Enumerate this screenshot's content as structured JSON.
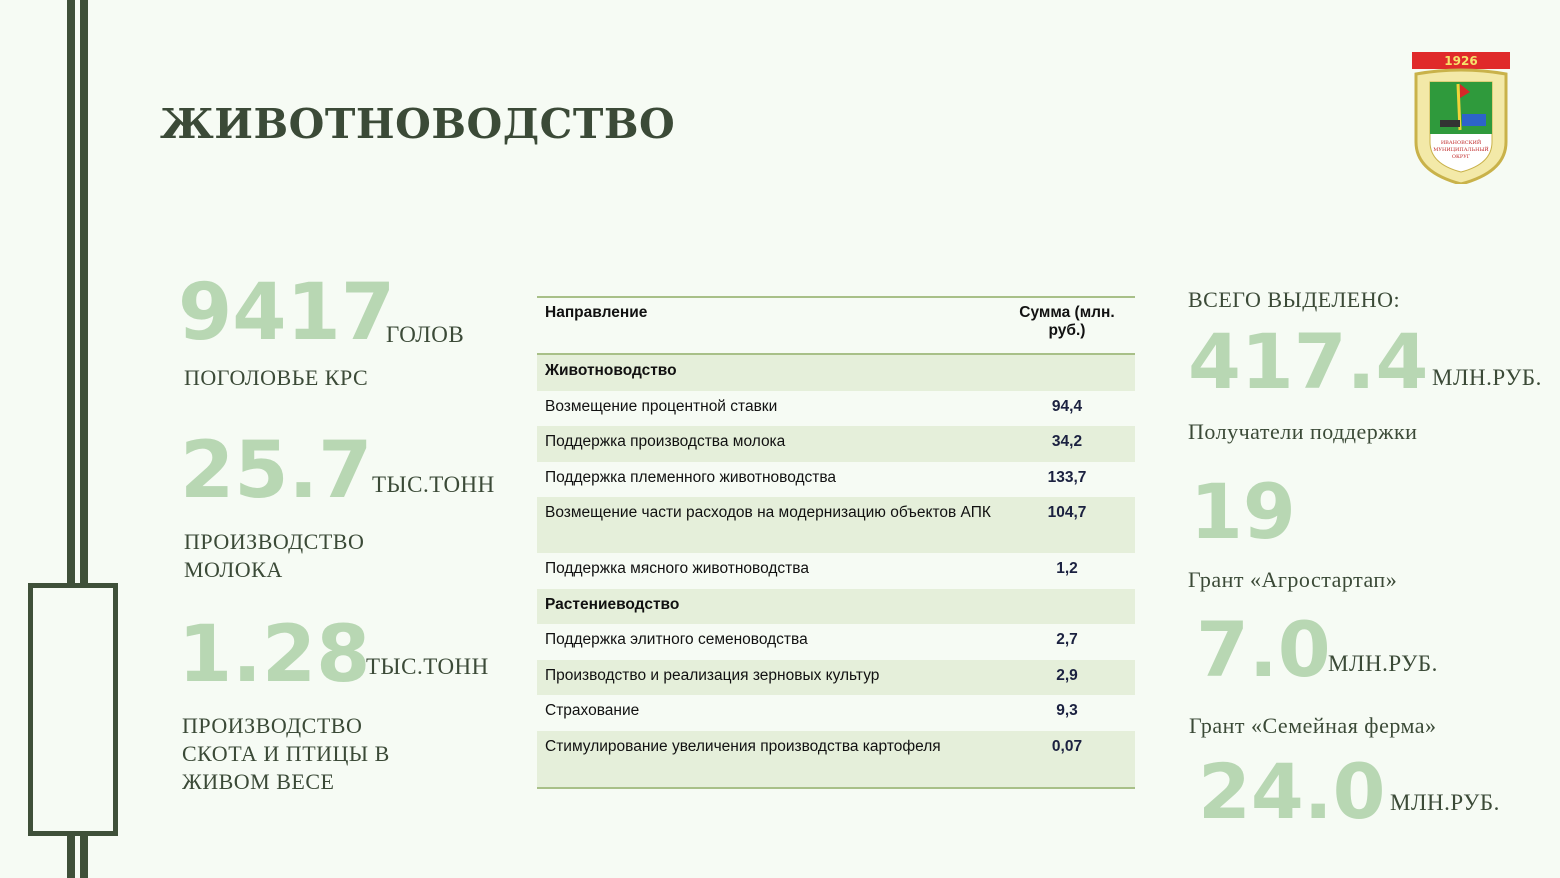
{
  "title": "ЖИВОТНОВОДСТВО",
  "logo": {
    "year": "1926",
    "text": "ИВАНОВСКИЙ МУНИЦИПАЛЬНЫЙ ОКРУГ"
  },
  "stats_left": [
    {
      "value": "9417",
      "unit": "ГОЛОВ",
      "label": "ПОГОЛОВЬЕ КРС"
    },
    {
      "value": "25.7",
      "unit": "ТЫС.ТОНН",
      "label": "ПРОИЗВОДСТВО МОЛОКА"
    },
    {
      "value": "1.28",
      "unit": "ТЫС.ТОНН",
      "label": "ПРОИЗВОДСТВО СКОТА И ПТИЦЫ В ЖИВОМ ВЕСЕ"
    }
  ],
  "table": {
    "headers": [
      "Направление",
      "Сумма (млн. руб.)"
    ],
    "rows": [
      {
        "name": "Животноводство",
        "value": "",
        "section": true
      },
      {
        "name": "Возмещение процентной ставки",
        "value": "94,4"
      },
      {
        "name": "Поддержка производства молока",
        "value": "34,2"
      },
      {
        "name": "Поддержка племенного животноводства",
        "value": "133,7"
      },
      {
        "name": "Возмещение части расходов на модернизацию объектов АПК",
        "value": "104,7"
      },
      {
        "name": "Поддержка мясного животноводства",
        "value": "1,2"
      },
      {
        "name": "Растениеводство",
        "value": "",
        "section": true
      },
      {
        "name": "Поддержка элитного семеноводства",
        "value": "2,7"
      },
      {
        "name": "Производство и реализация зерновых культур",
        "value": "2,9"
      },
      {
        "name": "Страхование",
        "value": "9,3"
      },
      {
        "name": "Стимулирование увеличения производства картофеля",
        "value": "0,07"
      }
    ]
  },
  "stats_right": {
    "total_label": "ВСЕГО ВЫДЕЛЕНО:",
    "total_value": "417.4",
    "total_unit": "МЛН.РУБ.",
    "recipients_label": "Получатели поддержки",
    "recipients_value": "19",
    "grant1_label": "Грант «Агростартап»",
    "grant1_value": "7.0",
    "grant1_unit": "МЛН.РУБ.",
    "grant2_label": "Грант «Семейная ферма»",
    "grant2_value": "24.0",
    "grant2_unit": "МЛН.РУБ."
  },
  "colors": {
    "dark_green": "#3f5039",
    "light_green": "#b8d7b3",
    "row_fill": "#e5efda"
  }
}
